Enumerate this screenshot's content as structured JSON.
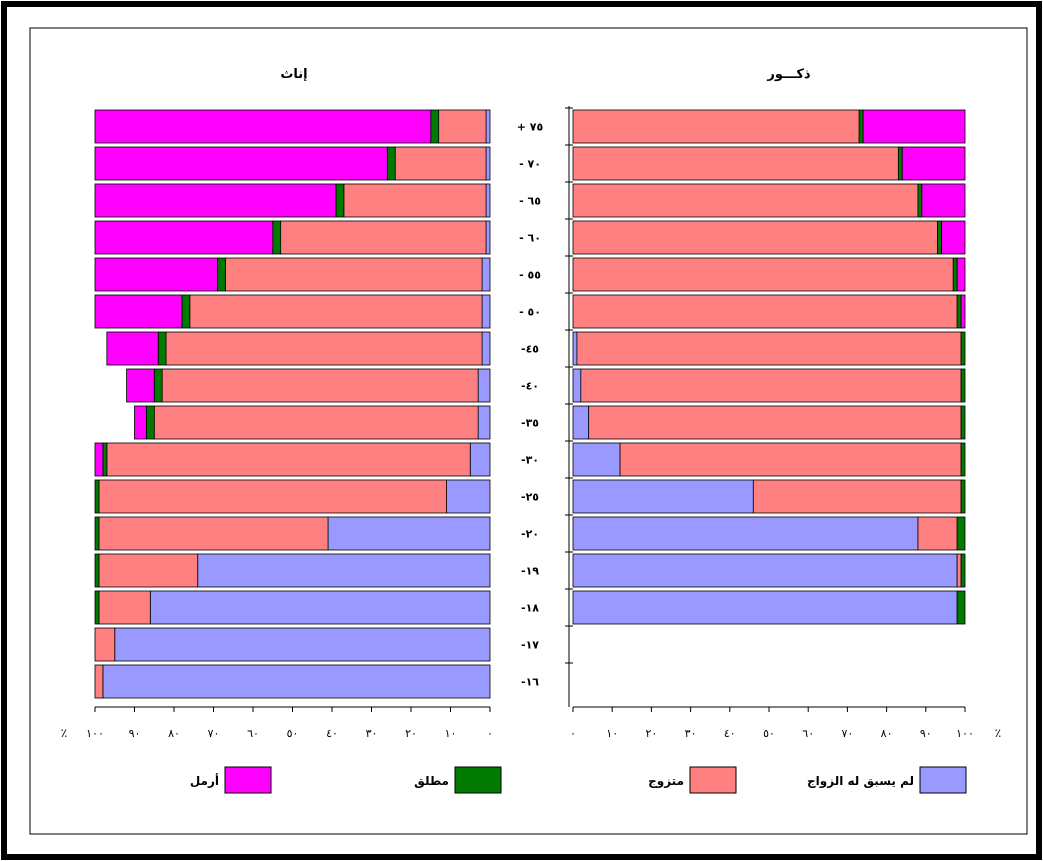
{
  "chart_data": {
    "type": "bar",
    "stacked": true,
    "orientation": "horizontal",
    "percent_stacked": true,
    "age_groups": [
      "+ ٧٥",
      "- ٧٠",
      "- ٦٥",
      "- ٦٠",
      "- ٥٥",
      "- ٥٠",
      "-٤٥",
      "-٤٠",
      "-٣٥",
      "-٣٠",
      "-٢٥",
      "-٢٠",
      "-١٩",
      "-١٨",
      "-١٧",
      "-١٦"
    ],
    "ticks": [
      "٠",
      "١٠",
      "٢٠",
      "٣٠",
      "٤٠",
      "٥٠",
      "٦٠",
      "٧٠",
      "٨٠",
      "٩٠",
      "١٠٠"
    ],
    "percent_sign": "٪",
    "xlim": [
      0,
      100
    ],
    "grid": false,
    "legend_placement": "bottom",
    "series": [
      {
        "key": "never",
        "name": "لم يسبق له الزواج",
        "color": "#9999ff"
      },
      {
        "key": "married",
        "name": "متزوج",
        "color": "#ff8080"
      },
      {
        "key": "divorced",
        "name": "مطلق",
        "color": "#007a00"
      },
      {
        "key": "widowed",
        "name": "أرمل",
        "color": "#ff00ff"
      }
    ],
    "panels": [
      {
        "title": "ذكـــور",
        "values": {
          "never": [
            0,
            0,
            0,
            0,
            0,
            0,
            1,
            2,
            4,
            12,
            46,
            88,
            98,
            98,
            null,
            null
          ],
          "married": [
            73,
            83,
            88,
            93,
            97,
            98,
            98,
            97,
            95,
            87,
            53,
            10,
            1,
            0,
            null,
            null
          ],
          "divorced": [
            1,
            1,
            1,
            1,
            1,
            1,
            1,
            1,
            1,
            1,
            1,
            2,
            1,
            2,
            null,
            null
          ],
          "widowed": [
            26,
            16,
            11,
            6,
            2,
            1,
            0,
            0,
            0,
            0,
            0,
            0,
            0,
            0,
            null,
            null
          ]
        }
      },
      {
        "title": "إناث",
        "values": {
          "never": [
            1,
            1,
            1,
            1,
            2,
            2,
            2,
            3,
            3,
            5,
            11,
            41,
            74,
            86,
            95,
            98
          ],
          "married": [
            12,
            23,
            36,
            52,
            65,
            74,
            80,
            80,
            82,
            92,
            88,
            58,
            25,
            13,
            5,
            2
          ],
          "divorced": [
            2,
            2,
            2,
            2,
            2,
            2,
            2,
            2,
            2,
            1,
            1,
            1,
            1,
            1,
            0,
            0
          ],
          "widowed": [
            85,
            74,
            61,
            45,
            31,
            22,
            13,
            7,
            3,
            2,
            0,
            0,
            0,
            0,
            0,
            0
          ]
        }
      }
    ]
  }
}
